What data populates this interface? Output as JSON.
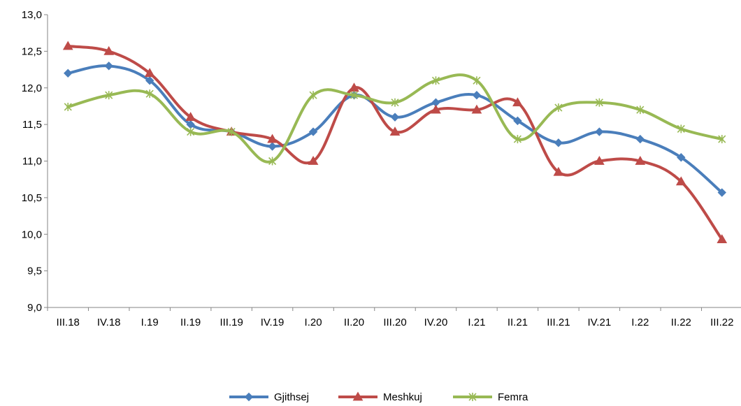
{
  "chart_data": {
    "type": "line",
    "title": "",
    "xlabel": "",
    "ylabel": "",
    "categories": [
      "III.18",
      "IV.18",
      "I.19",
      "II.19",
      "III.19",
      "IV.19",
      "I.20",
      "II.20",
      "III.20",
      "IV.20",
      "I.21",
      "II.21",
      "III.21",
      "IV.21",
      "I.22",
      "II.22",
      "III.22"
    ],
    "ylim": [
      9.0,
      13.0
    ],
    "yticks": [
      9.0,
      9.5,
      10.0,
      10.5,
      11.0,
      11.5,
      12.0,
      12.5,
      13.0
    ],
    "ytick_labels": [
      "9,0",
      "9,5",
      "10,0",
      "10,5",
      "11,0",
      "11,5",
      "12,0",
      "12,5",
      "13,0"
    ],
    "grid": false,
    "smooth": true,
    "legend_position": "bottom",
    "series": [
      {
        "name": "Gjithsej",
        "color": "#4a7ebb",
        "marker": "diamond",
        "values": [
          12.2,
          12.3,
          12.1,
          11.5,
          11.4,
          11.2,
          11.4,
          11.9,
          11.6,
          11.8,
          11.9,
          11.55,
          11.25,
          11.4,
          11.3,
          11.05,
          10.57
        ]
      },
      {
        "name": "Meshkuj",
        "color": "#be4b48",
        "marker": "triangle",
        "values": [
          12.57,
          12.5,
          12.2,
          11.6,
          11.4,
          11.3,
          11.0,
          12.0,
          11.4,
          11.7,
          11.7,
          11.8,
          10.85,
          11.0,
          11.0,
          10.72,
          9.93
        ]
      },
      {
        "name": "Femra",
        "color": "#98b954",
        "marker": "star",
        "values": [
          11.74,
          11.9,
          11.92,
          11.4,
          11.4,
          11.0,
          11.9,
          11.9,
          11.8,
          12.1,
          12.1,
          11.3,
          11.73,
          11.8,
          11.7,
          11.44,
          11.3
        ]
      }
    ]
  }
}
